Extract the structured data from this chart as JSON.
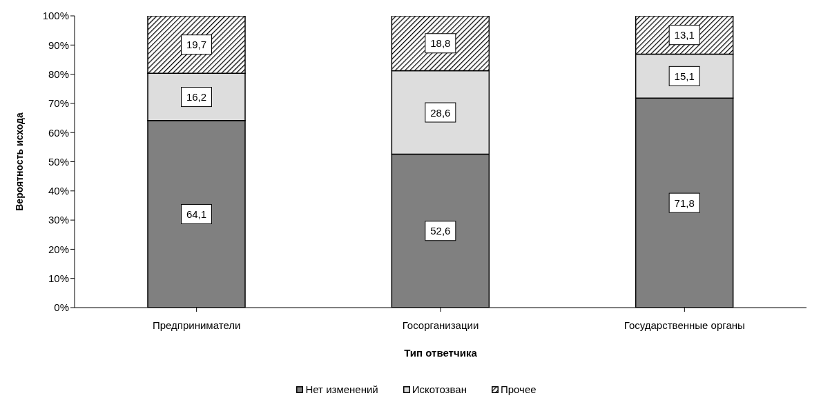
{
  "chart_data": {
    "type": "bar",
    "stacked": true,
    "xlabel": "Тип ответчика",
    "ylabel": "Вероятность исхода",
    "categories": [
      "Предприниматели",
      "Госорганизации",
      "Государственные органы"
    ],
    "series": [
      {
        "name": "Нет изменений",
        "color": "#808080",
        "values": [
          64.1,
          52.6,
          71.8
        ],
        "value_labels": [
          "64,1",
          "52,6",
          "71,8"
        ]
      },
      {
        "name": "Искотозван",
        "color": "#dddddd",
        "values": [
          16.2,
          28.6,
          15.1
        ],
        "value_labels": [
          "16,2",
          "28,6",
          "15,1"
        ]
      },
      {
        "name": "Прочее",
        "color": "#000000",
        "values": [
          19.7,
          18.8,
          13.1
        ],
        "value_labels": [
          "19,7",
          "18,8",
          "13,1"
        ]
      }
    ],
    "ylim": [
      0,
      100
    ],
    "yticks": [
      {
        "value": 0,
        "label": "0%"
      },
      {
        "value": 10,
        "label": "10%"
      },
      {
        "value": 20,
        "label": "20%"
      },
      {
        "value": 30,
        "label": "30%"
      },
      {
        "value": 40,
        "label": "40%"
      },
      {
        "value": 50,
        "label": "50%"
      },
      {
        "value": 60,
        "label": "60%"
      },
      {
        "value": 70,
        "label": "70%"
      },
      {
        "value": 80,
        "label": "80%"
      },
      {
        "value": 90,
        "label": "90%"
      },
      {
        "value": 100,
        "label": "100%"
      }
    ],
    "grid": false,
    "legend": "bottom"
  }
}
